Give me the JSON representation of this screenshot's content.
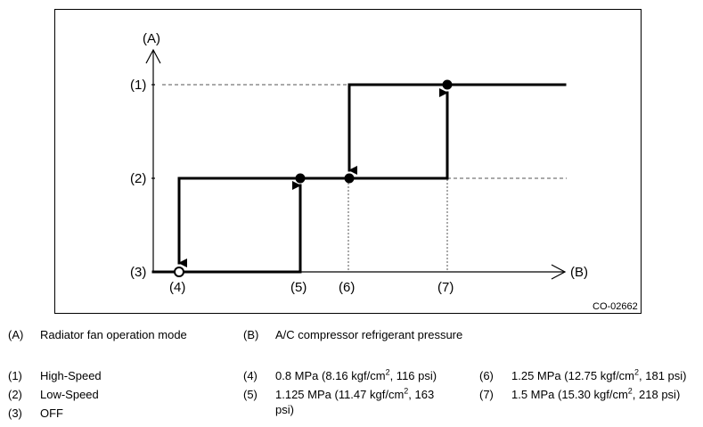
{
  "diagram": {
    "y_axis_label": "(A)",
    "x_axis_label": "(B)",
    "y_levels": [
      "(1)",
      "(2)",
      "(3)"
    ],
    "x_points": [
      "(4)",
      "(5)",
      "(6)",
      "(7)"
    ],
    "figure_code": "CO-02662"
  },
  "legend": {
    "A": {
      "key": "(A)",
      "text": "Radiator fan operation mode"
    },
    "B": {
      "key": "(B)",
      "text": "A/C compressor refrigerant pressure"
    },
    "items": [
      {
        "key": "(1)",
        "text": "High-Speed"
      },
      {
        "key": "(2)",
        "text": "Low-Speed"
      },
      {
        "key": "(3)",
        "text": "OFF"
      },
      {
        "key": "(4)",
        "pre": "0.8 MPa (8.16 kgf/cm",
        "sup": "2",
        "post": ", 116 psi)"
      },
      {
        "key": "(5)",
        "pre": "1.125 MPa (11.47 kgf/cm",
        "sup": "2",
        "post": ", 163",
        "line2": "psi)"
      },
      {
        "key": "(6)",
        "pre": "1.25 MPa (12.75 kgf/cm",
        "sup": "2",
        "post": ", 181 psi)"
      },
      {
        "key": "(7)",
        "pre": "1.5 MPa (15.30 kgf/cm",
        "sup": "2",
        "post": ", 218 psi)"
      }
    ]
  }
}
